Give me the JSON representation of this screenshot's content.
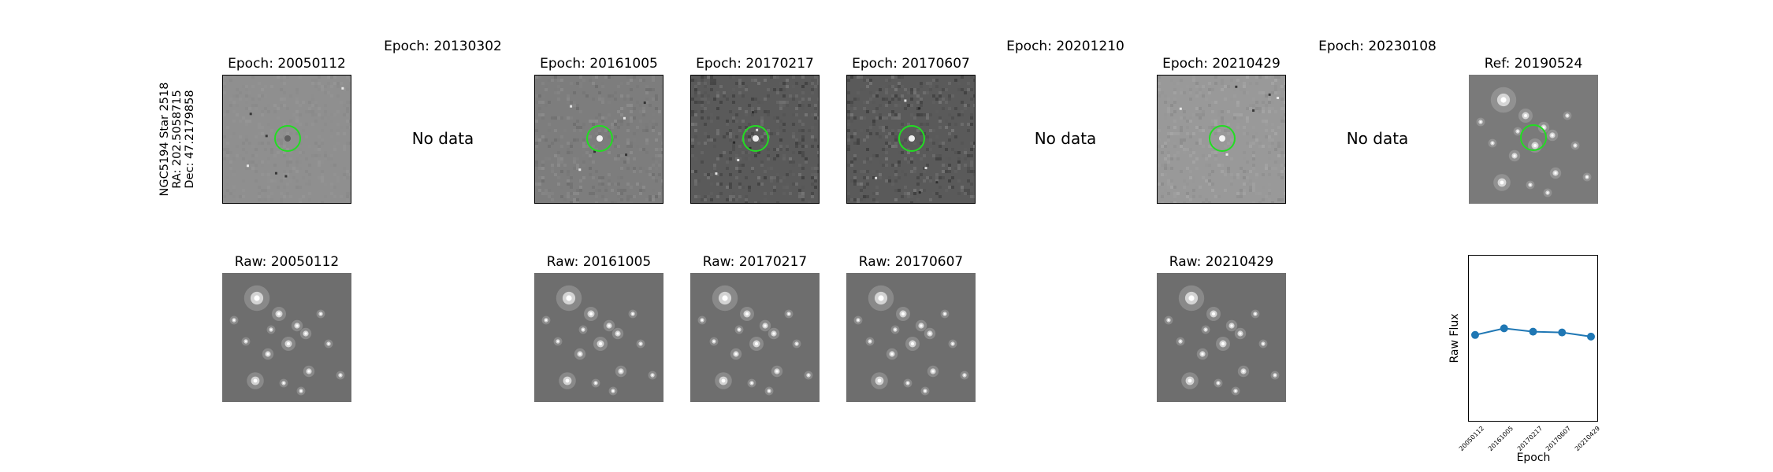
{
  "target": {
    "name_line": "NGC5194 Star 2518",
    "ra_line": "RA: 202.5058715",
    "dec_line": "Dec: 47.2179858"
  },
  "columns": [
    {
      "diff_title": "Epoch: 20050112",
      "has_data": true,
      "raw_title": "Raw: 20050112",
      "diff_style": "soft"
    },
    {
      "diff_title": "Epoch: 20130302",
      "has_data": false,
      "nodata_text": "No data"
    },
    {
      "diff_title": "Epoch: 20161005",
      "has_data": true,
      "raw_title": "Raw: 20161005",
      "diff_style": "bright"
    },
    {
      "diff_title": "Epoch: 20170217",
      "has_data": true,
      "raw_title": "Raw: 20170217",
      "diff_style": "dark"
    },
    {
      "diff_title": "Epoch: 20170607",
      "has_data": true,
      "raw_title": "Raw: 20170607",
      "diff_style": "dark"
    },
    {
      "diff_title": "Epoch: 20201210",
      "has_data": false,
      "nodata_text": "No data"
    },
    {
      "diff_title": "Epoch: 20210429",
      "has_data": true,
      "raw_title": "Raw: 20210429",
      "diff_style": "light"
    },
    {
      "diff_title": "Epoch: 20230108",
      "has_data": false,
      "nodata_text": "No data"
    }
  ],
  "reference": {
    "title": "Ref: 20190524"
  },
  "colors": {
    "marker_circle": "#22dd22",
    "series": "#1f77b4",
    "raw_background": "#6e6e6e",
    "ref_background": "#7a7a7a"
  },
  "chart_data": {
    "type": "line",
    "title": "",
    "xlabel": "Epoch",
    "ylabel": "Raw Flux",
    "x": [
      "20050112",
      "20161005",
      "20170217",
      "20170607",
      "20210429"
    ],
    "series": [
      {
        "name": "Raw Flux",
        "values": [
          0.52,
          0.56,
          0.54,
          0.535,
          0.51
        ]
      }
    ],
    "ylim": [
      0,
      1
    ],
    "grid": false
  }
}
